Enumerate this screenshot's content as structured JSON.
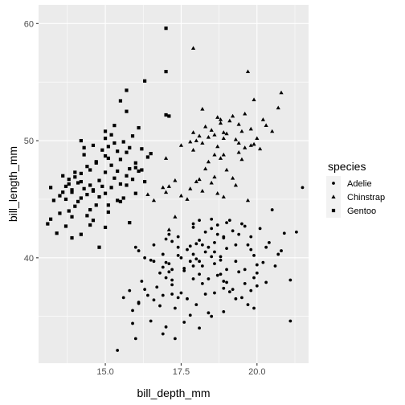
{
  "chart_data": {
    "type": "scatter",
    "xlabel": "bill_depth_mm",
    "ylabel": "bill_length_mm",
    "xlim": [
      12.8,
      21.7
    ],
    "ylim": [
      31,
      61.6
    ],
    "x_ticks": [
      15.0,
      17.5,
      20.0
    ],
    "x_tick_labels": [
      "15.0",
      "17.5",
      "20.0"
    ],
    "y_ticks": [
      40,
      50,
      60
    ],
    "y_tick_labels": [
      "40",
      "50",
      "60"
    ],
    "grid": true,
    "legend": {
      "title": "species",
      "position": "right",
      "entries": [
        "Adelie",
        "Chinstrap",
        "Gentoo"
      ]
    },
    "colors": {
      "panel_background": "#ebebeb",
      "grid": "#ffffff",
      "points": "#000000"
    },
    "series": [
      {
        "name": "Adelie",
        "marker": "circle",
        "points": [
          [
            17.4,
            36.6
          ],
          [
            17.5,
            37.0
          ],
          [
            16.2,
            38.0
          ],
          [
            17.9,
            38.2
          ],
          [
            17.2,
            38.1
          ],
          [
            18.1,
            38.6
          ],
          [
            17.6,
            38.9
          ],
          [
            17.6,
            39.1
          ],
          [
            16.9,
            39.2
          ],
          [
            18.2,
            39.3
          ],
          [
            17.1,
            39.5
          ],
          [
            17.0,
            39.6
          ],
          [
            17.8,
            39.7
          ],
          [
            16.6,
            39.7
          ],
          [
            18.8,
            39.8
          ],
          [
            18.0,
            39.9
          ],
          [
            18.5,
            40.1
          ],
          [
            17.4,
            40.2
          ],
          [
            17.9,
            40.3
          ],
          [
            16.1,
            40.6
          ],
          [
            18.6,
            40.5
          ],
          [
            19.0,
            40.8
          ],
          [
            18.4,
            40.9
          ],
          [
            17.8,
            41.0
          ],
          [
            19.7,
            41.1
          ],
          [
            18.2,
            41.1
          ],
          [
            17.2,
            41.4
          ],
          [
            18.1,
            41.5
          ],
          [
            17.0,
            41.6
          ],
          [
            18.9,
            41.7
          ],
          [
            18.9,
            41.8
          ],
          [
            18.7,
            42.0
          ],
          [
            18.3,
            42.2
          ],
          [
            19.2,
            42.3
          ],
          [
            18.5,
            42.5
          ],
          [
            19.6,
            42.7
          ],
          [
            18.7,
            42.8
          ],
          [
            19.5,
            42.9
          ],
          [
            17.9,
            42.9
          ],
          [
            19.1,
            43.2
          ],
          [
            18.1,
            43.2
          ],
          [
            19.4,
            38.8
          ],
          [
            20.0,
            39.4
          ],
          [
            20.2,
            39.6
          ],
          [
            19.9,
            40.2
          ],
          [
            20.8,
            40.6
          ],
          [
            19.8,
            40.7
          ],
          [
            20.4,
            41.3
          ],
          [
            19.3,
            41.1
          ],
          [
            20.9,
            42.1
          ],
          [
            21.3,
            42.2
          ],
          [
            20.1,
            42.5
          ],
          [
            20.5,
            44.1
          ],
          [
            20.6,
            39.3
          ],
          [
            20.0,
            37.6
          ],
          [
            19.6,
            37.8
          ],
          [
            18.9,
            37.4
          ],
          [
            18.6,
            37.0
          ],
          [
            18.0,
            36.0
          ],
          [
            18.4,
            35.3
          ],
          [
            17.6,
            34.5
          ],
          [
            17.8,
            35.1
          ],
          [
            16.8,
            35.9
          ],
          [
            16.6,
            36.4
          ],
          [
            16.9,
            36.8
          ],
          [
            17.3,
            35.7
          ],
          [
            18.3,
            36.9
          ],
          [
            19.1,
            37.1
          ],
          [
            18.7,
            38.5
          ],
          [
            19.3,
            36.5
          ],
          [
            18.5,
            35.0
          ],
          [
            18.1,
            34.0
          ],
          [
            17.0,
            34.1
          ],
          [
            16.5,
            34.6
          ],
          [
            16.9,
            33.5
          ],
          [
            17.3,
            33.1
          ],
          [
            15.9,
            34.4
          ],
          [
            16.0,
            33.1
          ],
          [
            15.4,
            32.1
          ],
          [
            15.9,
            35.5
          ],
          [
            16.1,
            36.2
          ],
          [
            16.4,
            36.8
          ],
          [
            16.7,
            37.5
          ],
          [
            17.0,
            38.3
          ],
          [
            17.2,
            39.0
          ],
          [
            17.5,
            40.0
          ],
          [
            17.7,
            40.7
          ],
          [
            18.0,
            41.2
          ],
          [
            18.3,
            40.5
          ],
          [
            18.6,
            39.5
          ],
          [
            18.8,
            38.6
          ],
          [
            19.0,
            37.9
          ],
          [
            19.2,
            37.3
          ],
          [
            19.5,
            36.6
          ],
          [
            19.7,
            36.0
          ],
          [
            19.9,
            35.7
          ],
          [
            18.9,
            35.4
          ],
          [
            17.2,
            37.7
          ],
          [
            16.8,
            38.7
          ],
          [
            16.5,
            39.8
          ],
          [
            16.9,
            40.3
          ],
          [
            17.4,
            41.8
          ],
          [
            17.9,
            42.6
          ],
          [
            18.5,
            43.3
          ],
          [
            19.0,
            43.0
          ],
          [
            19.4,
            42.0
          ],
          [
            19.8,
            41.8
          ],
          [
            20.3,
            40.9
          ],
          [
            20.7,
            40.3
          ],
          [
            21.1,
            38.1
          ],
          [
            21.5,
            46.0
          ],
          [
            21.1,
            34.6
          ],
          [
            19.0,
            39.0
          ],
          [
            18.2,
            37.8
          ],
          [
            17.7,
            36.5
          ],
          [
            16.3,
            37.3
          ],
          [
            17.1,
            38.8
          ],
          [
            18.6,
            41.3
          ],
          [
            18.8,
            40.1
          ],
          [
            19.3,
            39.7
          ],
          [
            19.6,
            39.0
          ],
          [
            20.0,
            38.7
          ],
          [
            17.4,
            40.9
          ],
          [
            17.1,
            42.0
          ],
          [
            16.6,
            41.1
          ],
          [
            16.3,
            40.0
          ],
          [
            15.8,
            37.2
          ],
          [
            16.0,
            40.9
          ],
          [
            18.1,
            39.7
          ],
          [
            18.4,
            38.2
          ],
          [
            18.9,
            38.0
          ],
          [
            19.9,
            38.3
          ],
          [
            19.8,
            37.2
          ],
          [
            20.3,
            37.9
          ],
          [
            17.9,
            39.3
          ],
          [
            17.2,
            36.9
          ],
          [
            16.1,
            36.1
          ],
          [
            15.6,
            36.6
          ]
        ]
      },
      {
        "name": "Chinstrap",
        "marker": "triangle",
        "points": [
          [
            17.9,
            57.9
          ],
          [
            19.7,
            55.9
          ],
          [
            20.8,
            54.1
          ],
          [
            19.9,
            53.5
          ],
          [
            18.2,
            52.7
          ],
          [
            19.6,
            52.3
          ],
          [
            19.2,
            52.1
          ],
          [
            18.7,
            52.0
          ],
          [
            20.2,
            51.8
          ],
          [
            19.1,
            51.7
          ],
          [
            18.8,
            51.5
          ],
          [
            19.4,
            51.4
          ],
          [
            20.3,
            51.3
          ],
          [
            18.3,
            51.2
          ],
          [
            19.8,
            51.0
          ],
          [
            18.5,
            50.9
          ],
          [
            19.5,
            50.8
          ],
          [
            18.9,
            50.7
          ],
          [
            19.0,
            50.6
          ],
          [
            18.6,
            50.5
          ],
          [
            18.1,
            50.4
          ],
          [
            18.4,
            50.3
          ],
          [
            20.0,
            50.2
          ],
          [
            19.3,
            50.1
          ],
          [
            18.0,
            50.0
          ],
          [
            17.8,
            49.9
          ],
          [
            18.2,
            49.8
          ],
          [
            19.9,
            49.7
          ],
          [
            17.5,
            49.6
          ],
          [
            18.7,
            49.5
          ],
          [
            19.6,
            49.4
          ],
          [
            20.1,
            49.3
          ],
          [
            17.9,
            49.2
          ],
          [
            19.4,
            49.0
          ],
          [
            18.9,
            48.8
          ],
          [
            18.8,
            48.5
          ],
          [
            19.5,
            48.4
          ],
          [
            18.4,
            48.2
          ],
          [
            18.3,
            47.6
          ],
          [
            19.0,
            47.5
          ],
          [
            18.6,
            46.9
          ],
          [
            19.2,
            46.8
          ],
          [
            18.1,
            46.7
          ],
          [
            17.3,
            46.6
          ],
          [
            18.0,
            46.5
          ],
          [
            18.5,
            46.4
          ],
          [
            19.3,
            46.2
          ],
          [
            17.1,
            46.1
          ],
          [
            17.8,
            45.9
          ],
          [
            18.2,
            45.7
          ],
          [
            17.0,
            45.6
          ],
          [
            18.7,
            45.5
          ],
          [
            18.9,
            45.2
          ],
          [
            17.5,
            45.3
          ],
          [
            16.4,
            45.4
          ],
          [
            17.7,
            45.0
          ],
          [
            16.6,
            44.9
          ],
          [
            17.3,
            43.5
          ],
          [
            17.1,
            42.4
          ],
          [
            19.8,
            49.6
          ],
          [
            20.7,
            52.8
          ],
          [
            20.5,
            50.8
          ],
          [
            17.9,
            50.7
          ],
          [
            18.9,
            50.2
          ],
          [
            19.4,
            49.8
          ],
          [
            17.0,
            48.5
          ],
          [
            16.9,
            46.0
          ],
          [
            19.7,
            44.9
          ],
          [
            18.6,
            48.8
          ],
          [
            18.8,
            51.8
          ]
        ]
      },
      {
        "name": "Gentoo",
        "marker": "square",
        "points": [
          [
            17.0,
            59.6
          ],
          [
            17.0,
            55.9
          ],
          [
            16.3,
            55.1
          ],
          [
            15.7,
            54.3
          ],
          [
            15.5,
            53.4
          ],
          [
            15.7,
            52.5
          ],
          [
            17.0,
            52.2
          ],
          [
            17.1,
            52.1
          ],
          [
            15.3,
            51.3
          ],
          [
            16.1,
            51.1
          ],
          [
            15.0,
            50.8
          ],
          [
            15.2,
            50.5
          ],
          [
            15.9,
            50.4
          ],
          [
            14.2,
            50.0
          ],
          [
            15.0,
            50.2
          ],
          [
            15.6,
            49.9
          ],
          [
            15.3,
            49.8
          ],
          [
            14.6,
            49.6
          ],
          [
            15.1,
            49.5
          ],
          [
            15.8,
            49.4
          ],
          [
            16.2,
            49.3
          ],
          [
            14.9,
            49.2
          ],
          [
            15.4,
            49.1
          ],
          [
            15.7,
            49.0
          ],
          [
            14.3,
            48.8
          ],
          [
            15.0,
            48.7
          ],
          [
            16.4,
            48.6
          ],
          [
            15.1,
            48.5
          ],
          [
            15.5,
            48.4
          ],
          [
            14.7,
            48.2
          ],
          [
            16.0,
            48.1
          ],
          [
            14.4,
            47.8
          ],
          [
            15.8,
            47.6
          ],
          [
            14.5,
            47.5
          ],
          [
            16.1,
            47.4
          ],
          [
            15.0,
            47.3
          ],
          [
            14.2,
            47.2
          ],
          [
            15.7,
            47.0
          ],
          [
            14.0,
            46.9
          ],
          [
            15.3,
            46.8
          ],
          [
            13.8,
            46.7
          ],
          [
            14.8,
            46.6
          ],
          [
            16.3,
            46.5
          ],
          [
            14.1,
            46.4
          ],
          [
            15.5,
            46.3
          ],
          [
            14.5,
            46.2
          ],
          [
            13.7,
            46.1
          ],
          [
            15.2,
            46.0
          ],
          [
            14.3,
            45.9
          ],
          [
            13.9,
            45.8
          ],
          [
            14.6,
            45.7
          ],
          [
            13.6,
            45.6
          ],
          [
            15.0,
            45.5
          ],
          [
            14.4,
            45.4
          ],
          [
            13.5,
            45.3
          ],
          [
            14.8,
            45.2
          ],
          [
            14.2,
            45.1
          ],
          [
            13.7,
            45.0
          ],
          [
            15.4,
            44.9
          ],
          [
            14.1,
            44.8
          ],
          [
            13.3,
            44.9
          ],
          [
            14.7,
            44.5
          ],
          [
            14.0,
            44.4
          ],
          [
            13.8,
            44.0
          ],
          [
            15.1,
            43.9
          ],
          [
            13.5,
            43.8
          ],
          [
            14.4,
            43.6
          ],
          [
            13.2,
            43.3
          ],
          [
            13.9,
            43.5
          ],
          [
            15.0,
            42.6
          ],
          [
            14.5,
            42.8
          ],
          [
            13.7,
            42.7
          ],
          [
            14.2,
            42.0
          ],
          [
            13.1,
            42.9
          ],
          [
            13.9,
            41.7
          ],
          [
            14.8,
            40.9
          ],
          [
            13.4,
            42.1
          ],
          [
            14.6,
            45.8
          ],
          [
            14.0,
            47.3
          ],
          [
            14.9,
            46.1
          ],
          [
            15.9,
            46.7
          ],
          [
            16.0,
            47.7
          ],
          [
            16.5,
            48.9
          ],
          [
            15.7,
            46.2
          ],
          [
            14.7,
            48.1
          ],
          [
            13.6,
            47.0
          ],
          [
            14.3,
            49.4
          ],
          [
            15.2,
            47.9
          ],
          [
            15.6,
            45.1
          ],
          [
            13.8,
            46.3
          ],
          [
            14.5,
            44.1
          ],
          [
            15.1,
            44.5
          ],
          [
            16.0,
            45.5
          ],
          [
            15.5,
            44.8
          ],
          [
            13.9,
            45.6
          ],
          [
            14.2,
            46.5
          ],
          [
            15.4,
            47.4
          ],
          [
            16.2,
            47.5
          ],
          [
            13.2,
            46.0
          ],
          [
            14.6,
            43.2
          ],
          [
            15.8,
            43.0
          ]
        ]
      }
    ]
  }
}
